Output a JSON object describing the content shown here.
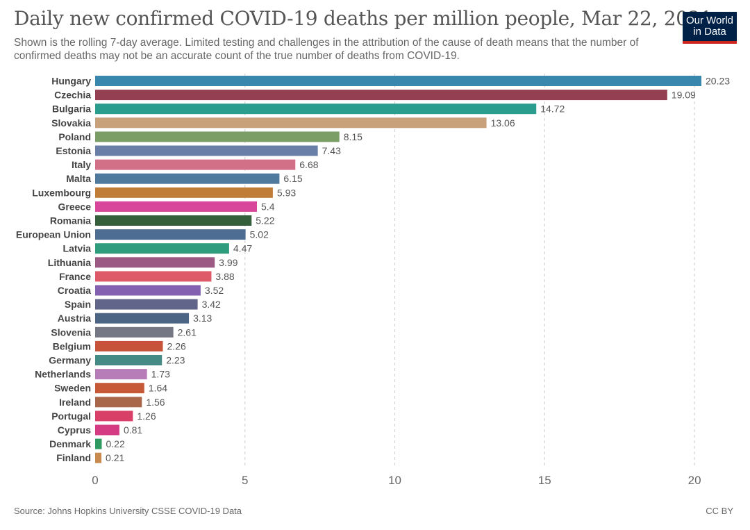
{
  "logo": {
    "line1": "Our World",
    "line2": "in Data",
    "background": "#002147",
    "accent": "#ce261e"
  },
  "footer": {
    "source": "Source: Johns Hopkins University CSSE COVID-19 Data",
    "license": "CC BY"
  },
  "chart_data": {
    "type": "bar",
    "orientation": "horizontal",
    "title": "Daily new confirmed COVID-19 deaths per million people, Mar 22, 2021",
    "subtitle": "Shown is the rolling 7-day average. Limited testing and challenges in the attribution of the cause of death means that the number of confirmed deaths may not be an accurate count of the true number of deaths from COVID-19.",
    "xlabel": "",
    "ylabel": "",
    "xlim": [
      0,
      20.23
    ],
    "xticks": [
      0,
      5,
      10,
      15,
      20
    ],
    "grid": "vertical dashed",
    "legend": "none",
    "categories": [
      "Hungary",
      "Czechia",
      "Bulgaria",
      "Slovakia",
      "Poland",
      "Estonia",
      "Italy",
      "Malta",
      "Luxembourg",
      "Greece",
      "Romania",
      "European Union",
      "Latvia",
      "Lithuania",
      "France",
      "Croatia",
      "Spain",
      "Austria",
      "Slovenia",
      "Belgium",
      "Germany",
      "Netherlands",
      "Sweden",
      "Ireland",
      "Portugal",
      "Cyprus",
      "Denmark",
      "Finland"
    ],
    "values": [
      20.23,
      19.09,
      14.72,
      13.06,
      8.15,
      7.43,
      6.68,
      6.15,
      5.93,
      5.4,
      5.22,
      5.02,
      4.47,
      3.99,
      3.88,
      3.52,
      3.42,
      3.13,
      2.61,
      2.26,
      2.23,
      1.73,
      1.64,
      1.56,
      1.26,
      0.81,
      0.22,
      0.21
    ],
    "value_labels": [
      "20.23",
      "19.09",
      "14.72",
      "13.06",
      "8.15",
      "7.43",
      "6.68",
      "6.15",
      "5.93",
      "5.4",
      "5.22",
      "5.02",
      "4.47",
      "3.99",
      "3.88",
      "3.52",
      "3.42",
      "3.13",
      "2.61",
      "2.26",
      "2.23",
      "1.73",
      "1.64",
      "1.56",
      "1.26",
      "0.81",
      "0.22",
      "0.21"
    ],
    "colors": [
      "#3a87ad",
      "#953f52",
      "#2a9d8f",
      "#c8a07a",
      "#7a9e66",
      "#6a7fa8",
      "#d17086",
      "#50799e",
      "#c07d37",
      "#d7469a",
      "#355e3b",
      "#4e6d92",
      "#2f9c7d",
      "#9a5a84",
      "#de5a69",
      "#8460b0",
      "#61658a",
      "#4d6584",
      "#757884",
      "#c7533a",
      "#458b85",
      "#b77db8",
      "#c65a38",
      "#a9674a",
      "#d94068",
      "#d53b82",
      "#2f9a5f",
      "#c98a50"
    ]
  }
}
